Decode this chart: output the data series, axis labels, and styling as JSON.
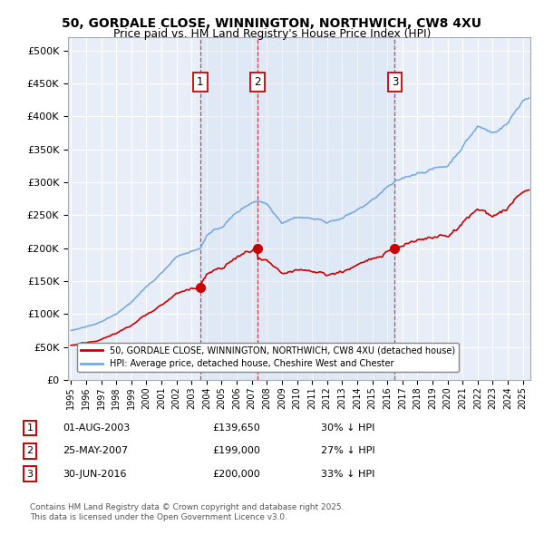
{
  "title": "50, GORDALE CLOSE, WINNINGTON, NORTHWICH, CW8 4XU",
  "subtitle": "Price paid vs. HM Land Registry's House Price Index (HPI)",
  "red_label": "50, GORDALE CLOSE, WINNINGTON, NORTHWICH, CW8 4XU (detached house)",
  "blue_label": "HPI: Average price, detached house, Cheshire West and Chester",
  "footer": "Contains HM Land Registry data © Crown copyright and database right 2025.\nThis data is licensed under the Open Government Licence v3.0.",
  "sales": [
    {
      "num": 1,
      "date": "01-AUG-2003",
      "date_val": 2003.583,
      "price": 139650,
      "hpi_pct": "30% ↓ HPI"
    },
    {
      "num": 2,
      "date": "25-MAY-2007",
      "date_val": 2007.396,
      "price": 199000,
      "hpi_pct": "27% ↓ HPI"
    },
    {
      "num": 3,
      "date": "30-JUN-2016",
      "date_val": 2016.496,
      "price": 200000,
      "hpi_pct": "33% ↓ HPI"
    }
  ],
  "ylim": [
    0,
    520000
  ],
  "yticks": [
    0,
    50000,
    100000,
    150000,
    200000,
    250000,
    300000,
    350000,
    400000,
    450000,
    500000
  ],
  "xlim_start": 1994.8,
  "xlim_end": 2025.5,
  "background_color": "#e8eef8",
  "grid_color": "#ffffff",
  "red_color": "#cc0000",
  "blue_color": "#7aaadd",
  "shade_color": "#d0dff0",
  "sale_marker_color": "#cc0000"
}
